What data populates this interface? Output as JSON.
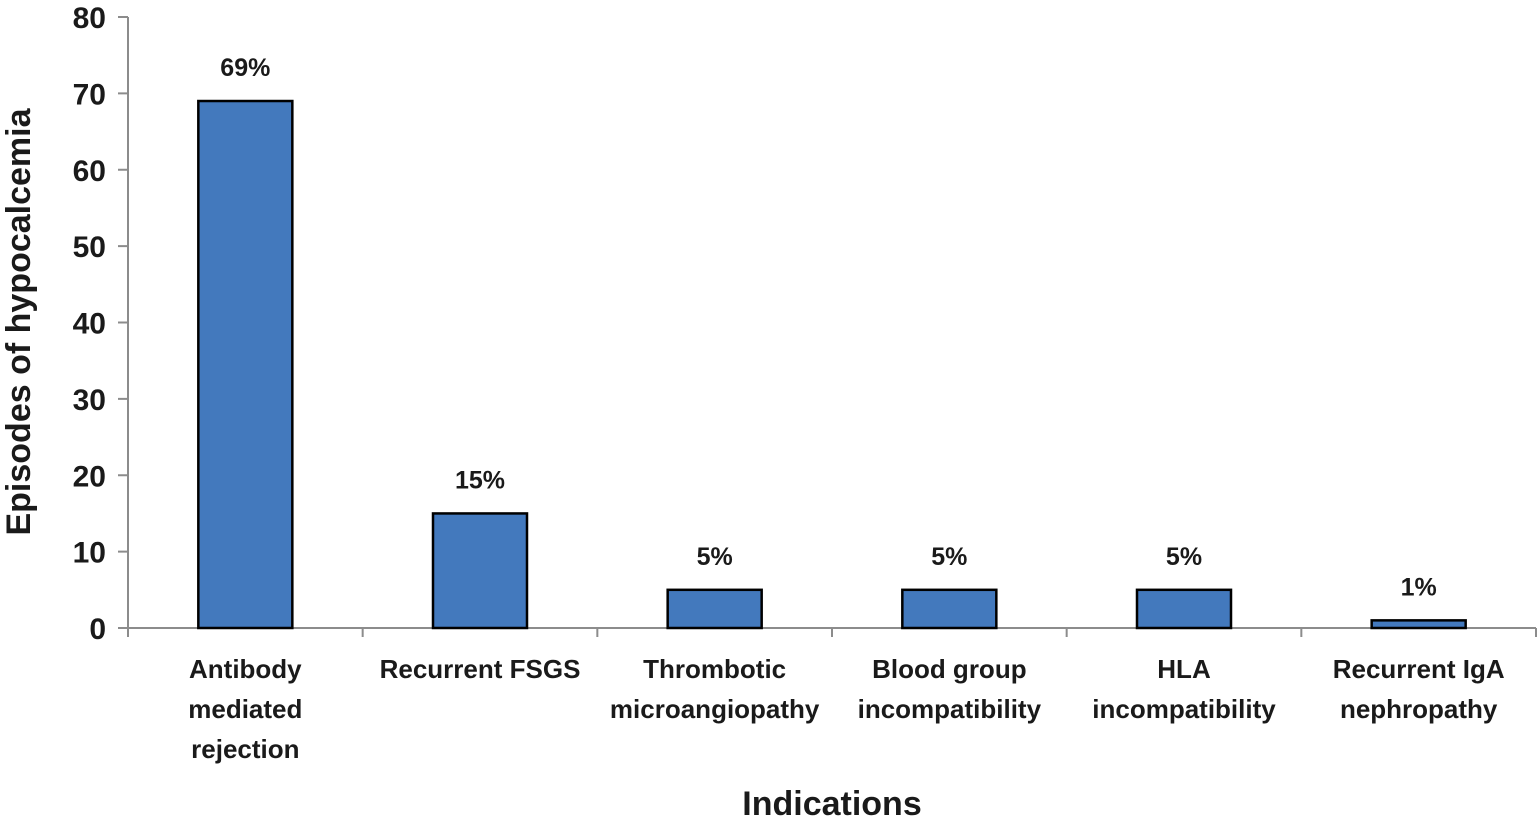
{
  "chart_data": {
    "type": "bar",
    "title": "",
    "xlabel": "Indications",
    "ylabel": "Episodes of hypocalcemia",
    "ylim": [
      0,
      80
    ],
    "yticks": [
      0,
      10,
      20,
      30,
      40,
      50,
      60,
      70,
      80
    ],
    "categories": [
      [
        "Antibody",
        "mediated",
        "rejection"
      ],
      [
        "Recurrent FSGS"
      ],
      [
        "Thrombotic",
        "microangiopathy"
      ],
      [
        "Blood group",
        "incompatibility"
      ],
      [
        "HLA",
        "incompatibility"
      ],
      [
        "Recurrent IgA",
        "nephropathy"
      ]
    ],
    "values": [
      69,
      15,
      5,
      5,
      5,
      1
    ],
    "data_labels": [
      "69%",
      "15%",
      "5%",
      "5%",
      "5%",
      "1%"
    ],
    "grid": false,
    "legend": "none",
    "colors": {
      "bar_fill": "#4379bd",
      "bar_stroke": "#000000",
      "axis": "#8c8c8c"
    }
  }
}
